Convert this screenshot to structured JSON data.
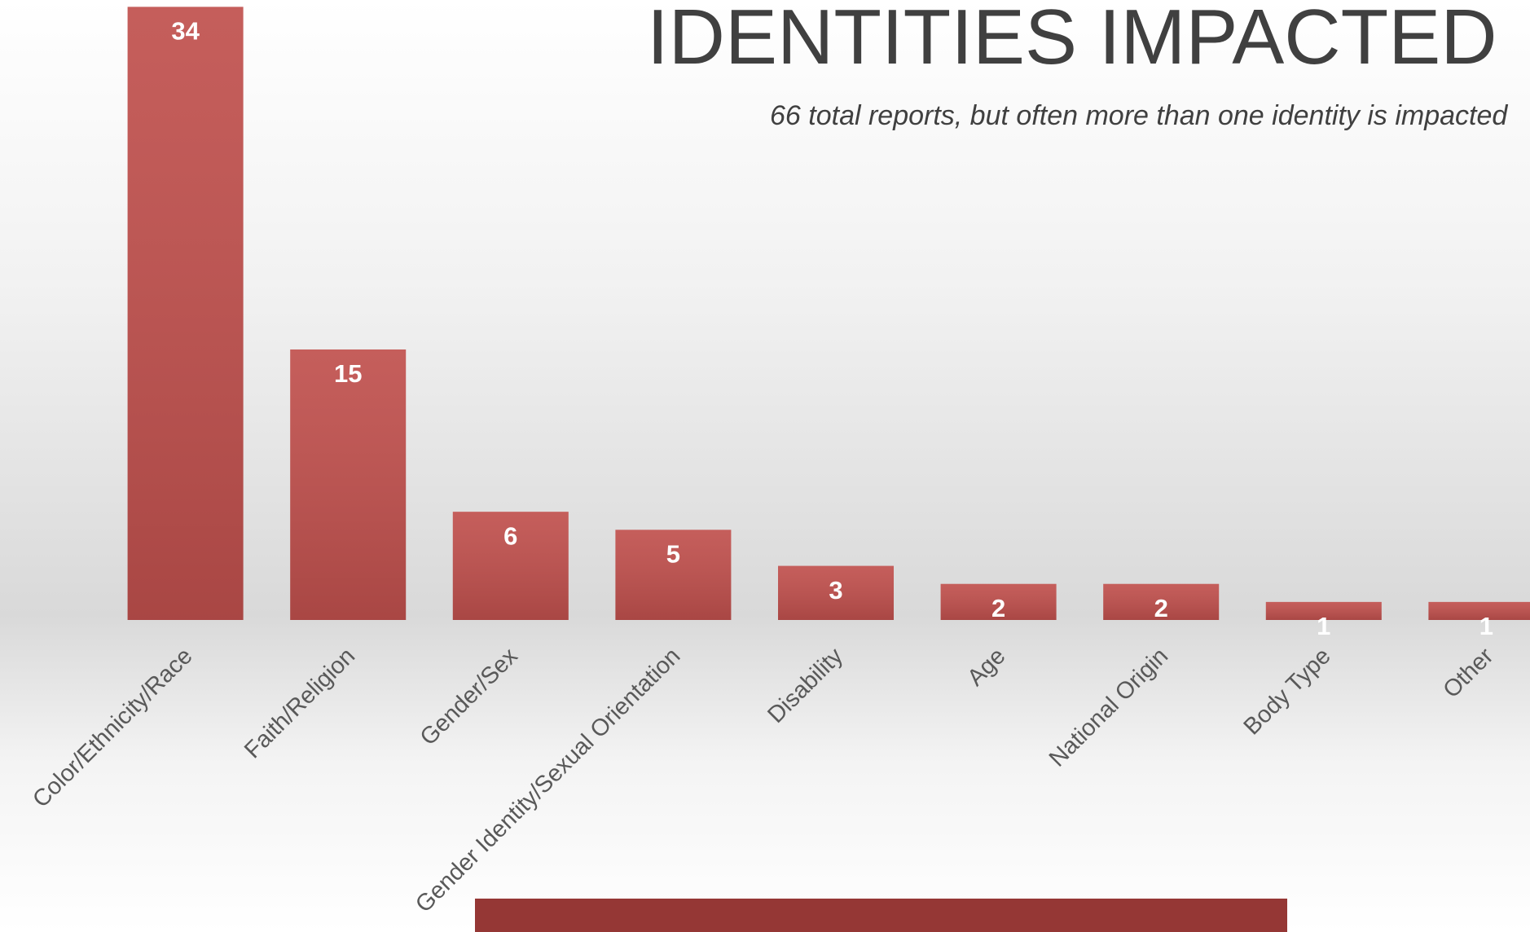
{
  "chart_data": {
    "type": "bar",
    "title": "IDENTITIES IMPACTED",
    "subtitle": "66 total reports, but often more than one identity is impacted",
    "categories": [
      "Color/Ethnicity/Race",
      "Faith/Religion",
      "Gender/Sex",
      "Gender Identity/Sexual Orientation",
      "Disability",
      "Age",
      "National Origin",
      "Body Type",
      "Other"
    ],
    "values": [
      34,
      15,
      6,
      5,
      3,
      2,
      2,
      1,
      1
    ],
    "color": "#c0504d",
    "ylim": [
      0,
      34
    ]
  }
}
